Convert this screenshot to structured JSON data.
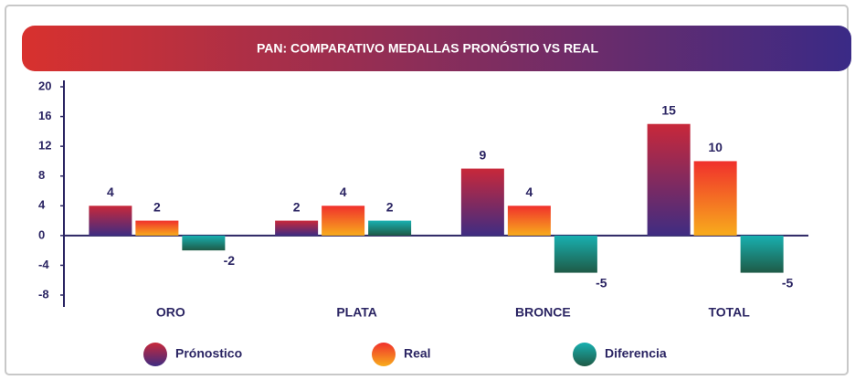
{
  "chart_data": {
    "type": "bar",
    "title": "PAN: COMPARATIVO MEDALLAS PRONÓSTIO VS REAL",
    "categories": [
      "ORO",
      "PLATA",
      "BRONCE",
      "TOTAL"
    ],
    "series": [
      {
        "name": "Prónostico",
        "colors": [
          "#c8283a",
          "#3f2c82"
        ],
        "values": [
          4,
          2,
          9,
          15
        ]
      },
      {
        "name": "Real",
        "colors": [
          "#f0302c",
          "#f8ac1c"
        ],
        "values": [
          2,
          4,
          4,
          10
        ]
      },
      {
        "name": "Diferencia",
        "colors": [
          "#18b0b0",
          "#1e5a46"
        ],
        "values": [
          -2,
          2,
          -5,
          -5
        ]
      }
    ],
    "ylim": [
      -8,
      20
    ],
    "yticks": [
      20,
      16,
      12,
      8,
      4,
      0,
      -4,
      -8
    ],
    "title_colors": [
      "#d8312e",
      "#3a2a86"
    ]
  }
}
